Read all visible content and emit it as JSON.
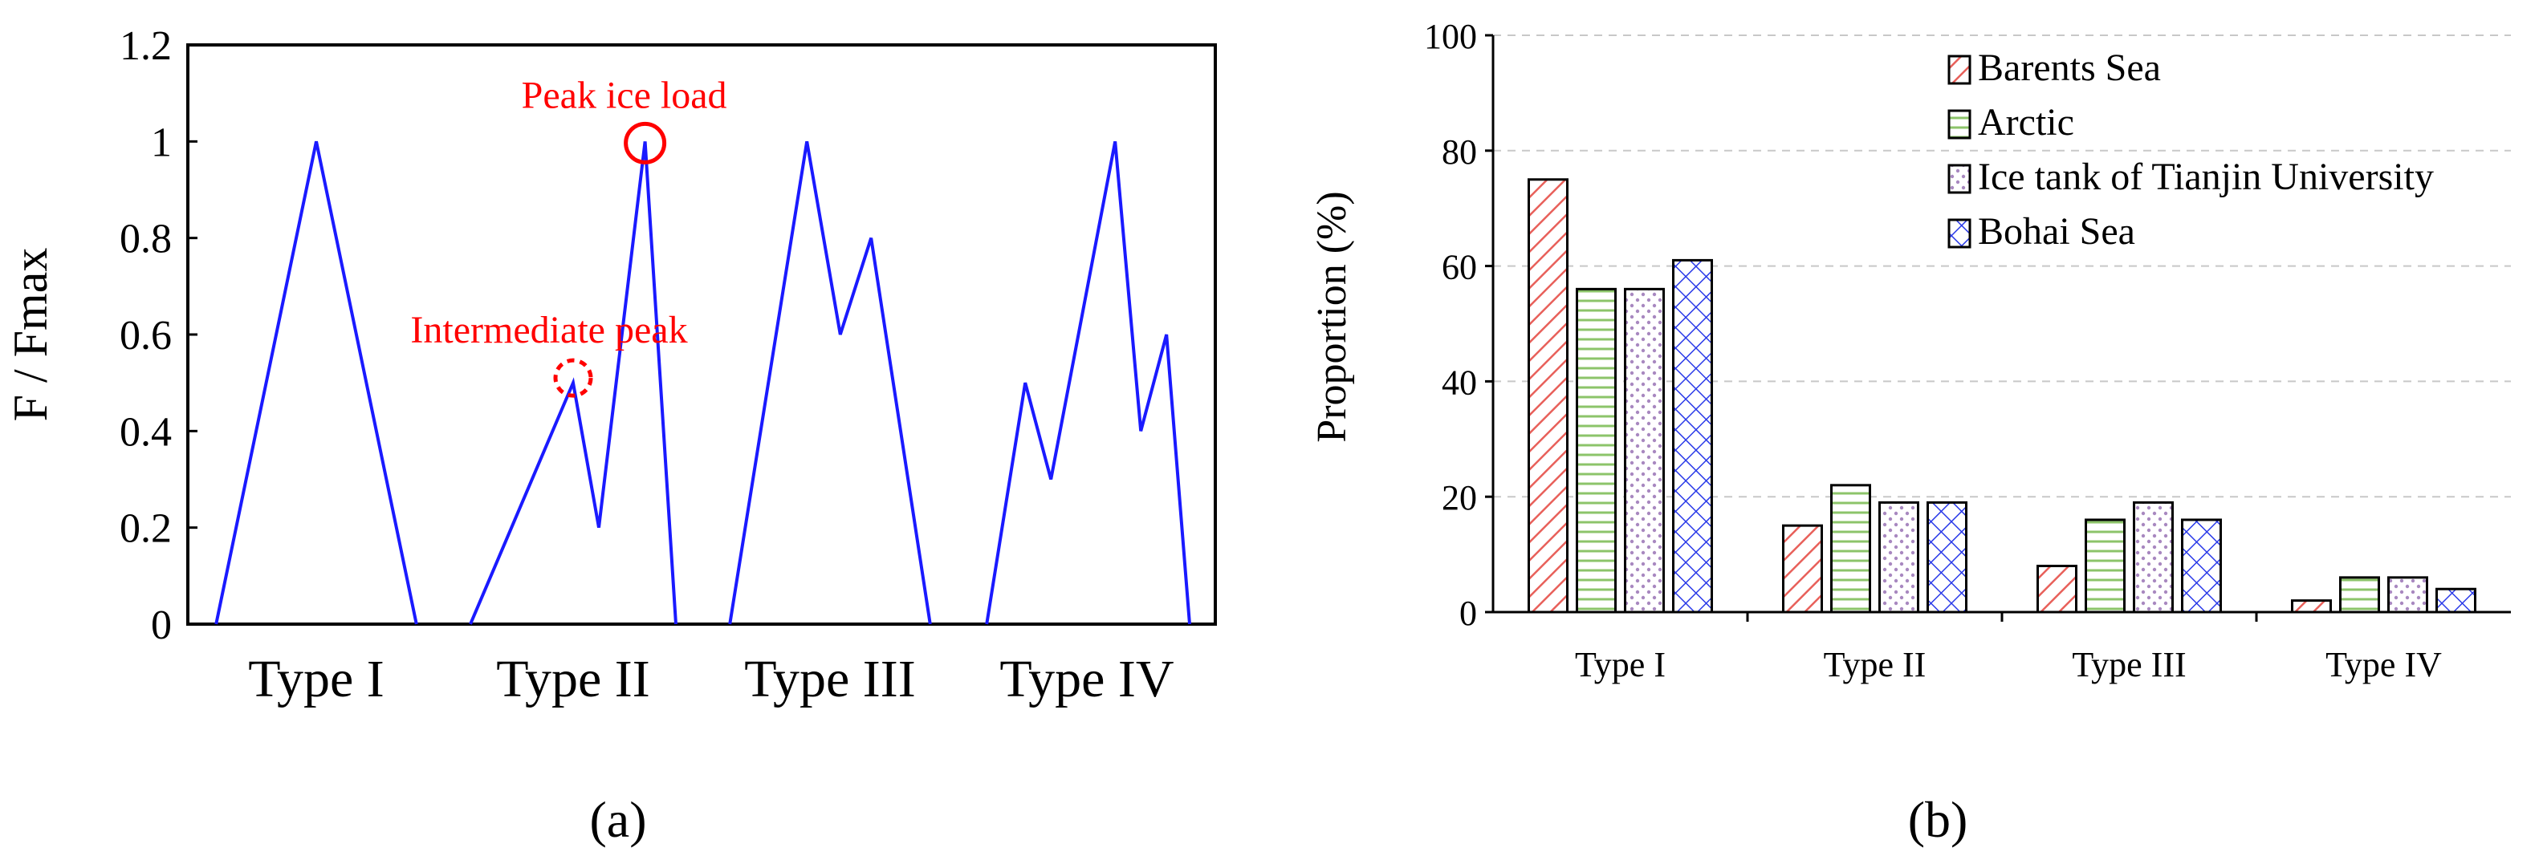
{
  "chart_data": [
    {
      "type": "line",
      "panel_label": "a",
      "ylabel": "F / Fmax",
      "ylim": [
        0,
        1.2
      ],
      "yticks": [
        0,
        0.2,
        0.4,
        0.6,
        0.8,
        1,
        1.2
      ],
      "ytick_labels": [
        "0",
        "0.2",
        "0.4",
        "0.6",
        "0.8",
        "1",
        "1.2"
      ],
      "categories": [
        "Type I",
        "Type II",
        "Type III",
        "Type IV"
      ],
      "line_color": "#1a1aff",
      "annotation_color": "#ff0000",
      "series": [
        {
          "name": "Type I",
          "x": [
            0.11,
            0.5,
            0.89
          ],
          "y": [
            0,
            1,
            0
          ]
        },
        {
          "name": "Type II",
          "x": [
            0.1,
            0.5,
            0.6,
            0.78,
            0.9
          ],
          "y": [
            0,
            0.5,
            0.2,
            1,
            0
          ]
        },
        {
          "name": "Type III",
          "x": [
            0.11,
            0.41,
            0.54,
            0.66,
            0.89
          ],
          "y": [
            0,
            1,
            0.6,
            0.8,
            0
          ]
        },
        {
          "name": "Type IV",
          "x": [
            0.11,
            0.26,
            0.36,
            0.61,
            0.71,
            0.81,
            0.9
          ],
          "y": [
            0,
            0.5,
            0.3,
            1,
            0.4,
            0.6,
            0
          ]
        }
      ],
      "annotations": [
        {
          "text": "Peak ice load",
          "series": "Type II",
          "point_index": 3,
          "marker": "circle-solid"
        },
        {
          "text": "Intermediate peak",
          "series": "Type II",
          "point_index": 1,
          "marker": "circle-dashed"
        }
      ]
    },
    {
      "type": "bar",
      "panel_label": "b",
      "ylabel": "Proportion (%)",
      "ylim": [
        0,
        100
      ],
      "yticks": [
        0,
        20,
        40,
        60,
        80,
        100
      ],
      "ytick_labels": [
        "0",
        "20",
        "40",
        "60",
        "80",
        "100"
      ],
      "grid": "horizontal-dashed",
      "legend_position": "top-right",
      "categories": [
        "Type I",
        "Type II",
        "Type III",
        "Type IV"
      ],
      "series": [
        {
          "name": "Barents Sea",
          "values": [
            75,
            15,
            8,
            2
          ],
          "pattern": "diagonal",
          "color": "#e8605a"
        },
        {
          "name": "Arctic",
          "values": [
            56,
            22,
            16,
            6
          ],
          "pattern": "horizontal",
          "color": "#8cc46a"
        },
        {
          "name": "Ice tank of Tianjin University",
          "values": [
            56,
            19,
            19,
            6
          ],
          "pattern": "dots",
          "color": "#a888c0"
        },
        {
          "name": "Bohai Sea",
          "values": [
            61,
            19,
            16,
            4
          ],
          "pattern": "crosshatch",
          "color": "#2a3ae8"
        }
      ]
    }
  ],
  "panel_labels": {
    "a": "(a)",
    "b": "(b)"
  }
}
